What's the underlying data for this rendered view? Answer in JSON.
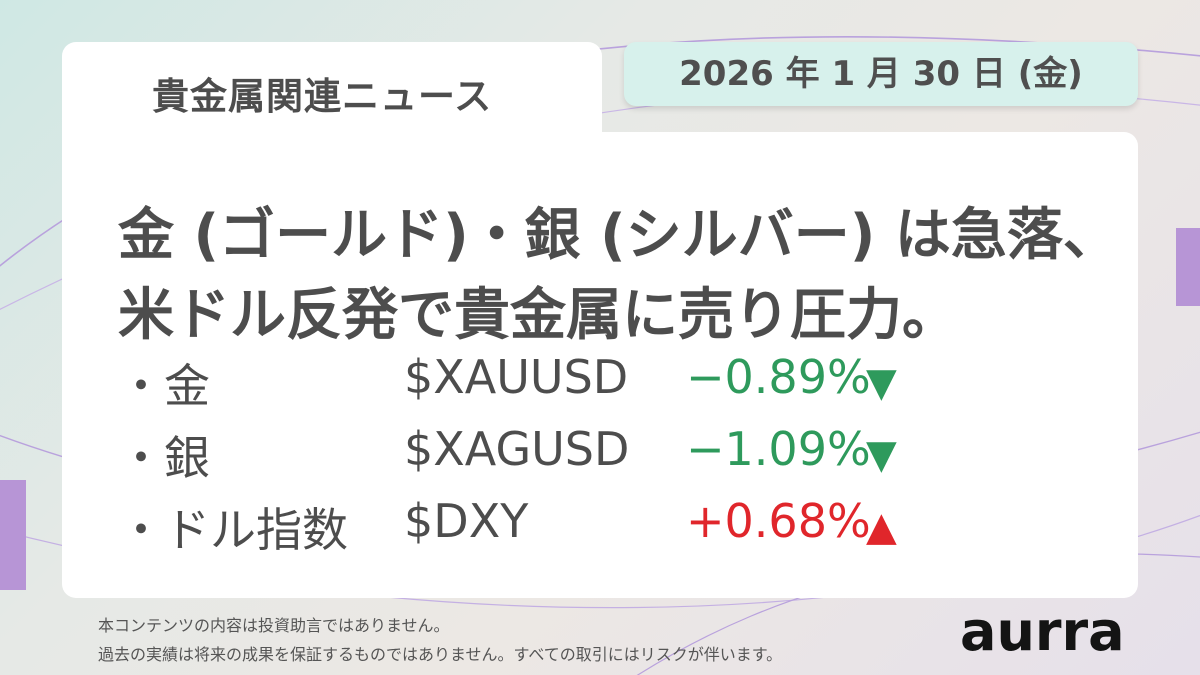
{
  "header": {
    "tab_title": "貴金属関連ニュース",
    "date": "2026 年 1 月 30 日 (金)"
  },
  "headline": {
    "line1": "金 (ゴールド)・銀 (シルバー) は急落、",
    "line2": "米ドル反発で貴金属に売り圧力。"
  },
  "rows": [
    {
      "name": "・金",
      "ticker": "$XAUUSD",
      "change": "−0.89%",
      "arrow": "▼",
      "direction": "down"
    },
    {
      "name": "・銀",
      "ticker": "$XAGUSD",
      "change": "−1.09%",
      "arrow": "▼",
      "direction": "down"
    },
    {
      "name": "・ドル指数",
      "ticker": "$DXY",
      "change": "+0.68%",
      "arrow": "▲",
      "direction": "up"
    }
  ],
  "disclaimer": {
    "line1": "本コンテンツの内容は投資助言ではありません。",
    "line2": "過去の実績は将来の成果を保証するものではありません。すべての取引にはリスクが伴います。"
  },
  "brand": {
    "logo_text": "aurra"
  },
  "colors": {
    "down": "#2e9a5c",
    "up": "#e0262b",
    "accent_purple": "#b795d6",
    "date_pill": "#d7f1ec"
  }
}
